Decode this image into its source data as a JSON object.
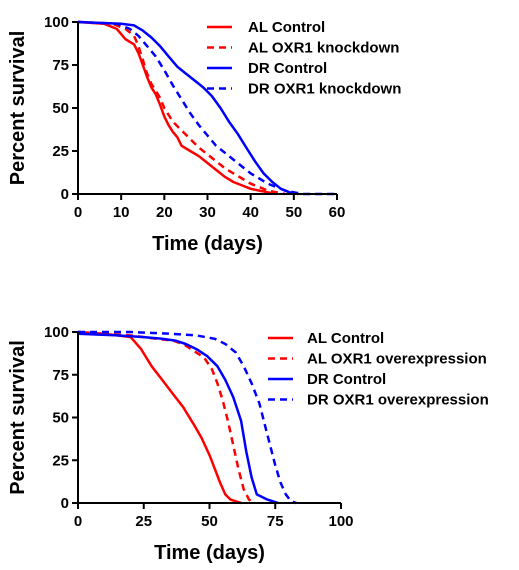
{
  "chart_data": [
    {
      "type": "line",
      "title": "",
      "xlabel": "Time (days)",
      "ylabel": "Percent survival",
      "xlim": [
        0,
        60
      ],
      "ylim": [
        0,
        100
      ],
      "xticks": [
        0,
        10,
        20,
        30,
        40,
        50,
        60
      ],
      "yticks": [
        0,
        25,
        50,
        75,
        100
      ],
      "grid": false,
      "legend_position": "top-right",
      "series": [
        {
          "name": "AL Control",
          "color": "#ff0000",
          "dashed": false,
          "x": [
            0,
            6,
            9,
            11,
            13,
            14,
            15,
            16,
            17,
            18,
            19,
            20,
            21,
            22,
            23,
            24,
            26,
            28,
            30,
            32,
            34,
            36,
            38,
            40,
            42,
            44,
            46
          ],
          "y": [
            100,
            99,
            96,
            90,
            87,
            82,
            75,
            68,
            62,
            58,
            52,
            45,
            40,
            36,
            33,
            28,
            25,
            22,
            18,
            14,
            10,
            7,
            5,
            3,
            2,
            1,
            0
          ]
        },
        {
          "name": "AL OXR1 knockdown",
          "color": "#ff0000",
          "dashed": true,
          "x": [
            0,
            8,
            11,
            13,
            14,
            15,
            16,
            17,
            18,
            19,
            20,
            21,
            22,
            24,
            26,
            28,
            30,
            32,
            34,
            36,
            38,
            40,
            42,
            44,
            46,
            48
          ],
          "y": [
            100,
            99,
            96,
            92,
            86,
            78,
            70,
            64,
            60,
            56,
            50,
            46,
            42,
            37,
            32,
            27,
            23,
            19,
            15,
            12,
            9,
            6,
            4,
            2,
            1,
            0
          ]
        },
        {
          "name": "DR Control",
          "color": "#0000ff",
          "dashed": false,
          "x": [
            0,
            10,
            13,
            15,
            17,
            19,
            21,
            23,
            25,
            27,
            29,
            31,
            33,
            35,
            37,
            39,
            41,
            43,
            45,
            47,
            49,
            51
          ],
          "y": [
            100,
            99,
            98,
            95,
            91,
            86,
            80,
            74,
            70,
            66,
            62,
            57,
            50,
            42,
            35,
            27,
            19,
            12,
            7,
            3,
            1,
            0
          ]
        },
        {
          "name": "DR OXR1 knockdown",
          "color": "#0000ff",
          "dashed": true,
          "x": [
            0,
            9,
            12,
            14,
            16,
            18,
            20,
            22,
            24,
            26,
            28,
            30,
            32,
            34,
            36,
            38,
            40,
            42,
            44,
            46,
            48,
            50,
            52,
            60
          ],
          "y": [
            100,
            99,
            96,
            92,
            86,
            80,
            72,
            63,
            55,
            47,
            40,
            34,
            28,
            24,
            20,
            16,
            12,
            9,
            6,
            4,
            2,
            1,
            0,
            0
          ]
        }
      ]
    },
    {
      "type": "line",
      "title": "",
      "xlabel": "Time (days)",
      "ylabel": "Percent survival",
      "xlim": [
        0,
        100
      ],
      "ylim": [
        0,
        100
      ],
      "xticks": [
        0,
        25,
        50,
        75,
        100
      ],
      "yticks": [
        0,
        25,
        50,
        75,
        100
      ],
      "grid": false,
      "legend_position": "top-right",
      "series": [
        {
          "name": "AL Control",
          "color": "#ff0000",
          "dashed": false,
          "x": [
            0,
            10,
            20,
            24,
            28,
            32,
            36,
            40,
            44,
            47,
            50,
            52,
            54,
            56,
            58,
            60,
            62
          ],
          "y": [
            100,
            99,
            97,
            90,
            80,
            72,
            64,
            56,
            46,
            38,
            28,
            20,
            12,
            5,
            2,
            1,
            0
          ]
        },
        {
          "name": "AL OXR1 overexpression",
          "color": "#ff0000",
          "dashed": true,
          "x": [
            0,
            20,
            30,
            36,
            40,
            44,
            48,
            51,
            53,
            55,
            57,
            59,
            61,
            63,
            65,
            67
          ],
          "y": [
            100,
            98,
            96,
            95,
            93,
            89,
            85,
            78,
            70,
            60,
            48,
            34,
            20,
            8,
            2,
            0
          ]
        },
        {
          "name": "DR Control",
          "color": "#0000ff",
          "dashed": false,
          "x": [
            0,
            15,
            25,
            32,
            37,
            41,
            45,
            49,
            53,
            56,
            59,
            62,
            64,
            66,
            68,
            72,
            76
          ],
          "y": [
            99,
            98,
            97,
            96,
            95,
            93,
            90,
            86,
            80,
            72,
            62,
            48,
            30,
            15,
            5,
            2,
            0
          ]
        },
        {
          "name": "DR OXR1 overexpression",
          "color": "#0000ff",
          "dashed": true,
          "x": [
            0,
            20,
            35,
            45,
            52,
            56,
            60,
            63,
            66,
            69,
            71,
            73,
            75,
            77,
            79,
            81,
            83
          ],
          "y": [
            100,
            100,
            99,
            98,
            96,
            93,
            88,
            80,
            70,
            58,
            46,
            34,
            22,
            12,
            5,
            1,
            0
          ]
        }
      ]
    }
  ]
}
